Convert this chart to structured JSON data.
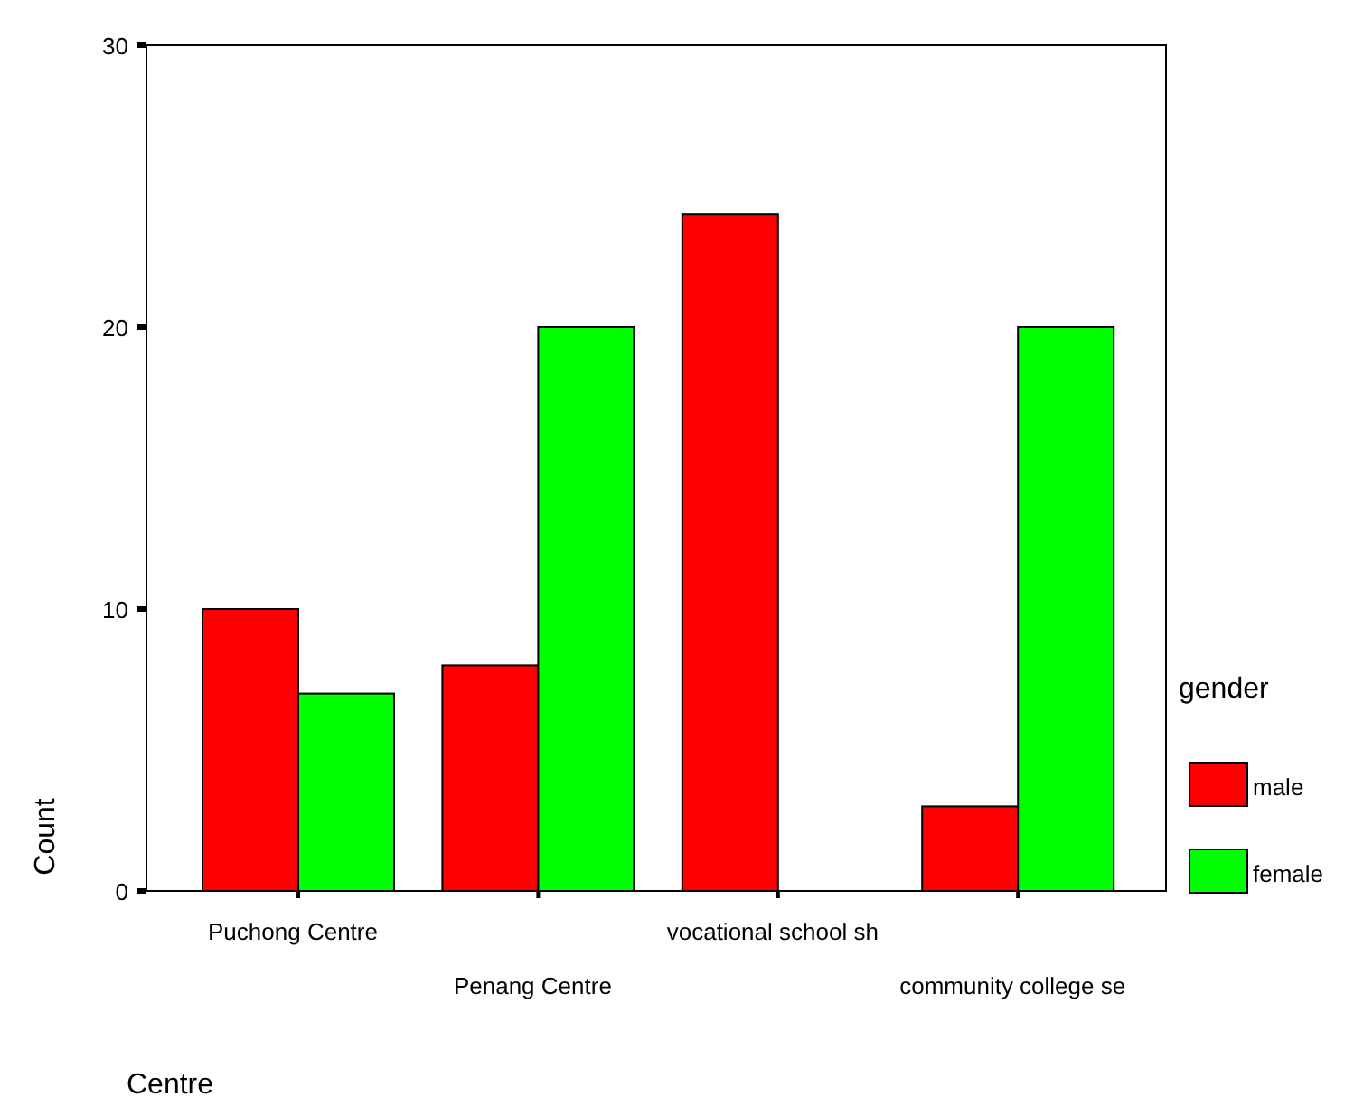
{
  "chart_data": {
    "type": "bar",
    "xlabel": "Centre",
    "ylabel": "Count",
    "legend_title": "gender",
    "categories": [
      "Puchong Centre",
      "Penang Centre",
      "vocational school sh",
      "community college se"
    ],
    "series": [
      {
        "name": "male",
        "color": "#ff0000",
        "values": [
          10,
          8,
          24,
          3
        ]
      },
      {
        "name": "female",
        "color": "#00ff00",
        "values": [
          7,
          20,
          null,
          20
        ]
      }
    ],
    "ylim": [
      0,
      30
    ],
    "yticks": [
      0,
      10,
      20,
      30
    ],
    "grid": false,
    "legend": "right"
  }
}
